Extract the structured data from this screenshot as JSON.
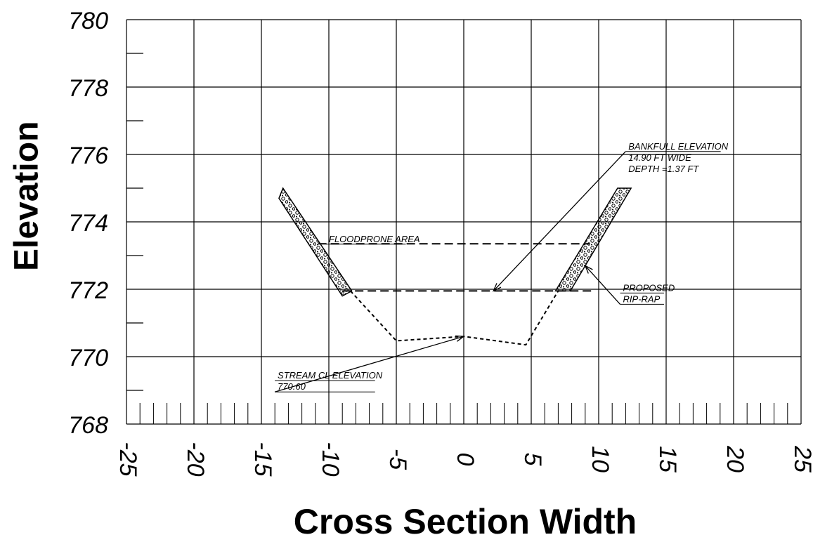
{
  "chart_data": {
    "type": "line",
    "xlabel": "Cross Section Width",
    "ylabel": "Elevation",
    "xlim": [
      -25,
      25
    ],
    "ylim": [
      768,
      780
    ],
    "x_ticks": [
      "-25",
      "-20",
      "-15",
      "-10",
      "-5",
      "0",
      "5",
      "10",
      "15",
      "20",
      "25"
    ],
    "y_ticks": [
      "780",
      "778",
      "776",
      "774",
      "772",
      "770",
      "768"
    ],
    "grid": true,
    "series": [
      {
        "style": "short-dashed",
        "x": [
          -8.4,
          -5.0,
          0.0,
          4.6,
          7.0
        ],
        "y": [
          771.95,
          770.47,
          770.6,
          770.35,
          771.95
        ]
      },
      {
        "style": "long-dashed",
        "x": [
          -9.0,
          9.5
        ],
        "y": [
          771.95,
          771.95
        ]
      },
      {
        "style": "long-dashed",
        "x": [
          -10.8,
          9.3
        ],
        "y": [
          773.35,
          773.35
        ]
      }
    ],
    "riprap": [
      {
        "x": [
          -13.7,
          -13.4,
          -8.3,
          -9.0
        ],
        "y": [
          774.7,
          775.0,
          771.95,
          771.8
        ]
      },
      {
        "x": [
          6.8,
          7.9,
          12.4,
          11.4
        ],
        "y": [
          771.95,
          771.95,
          775.0,
          775.0
        ]
      }
    ],
    "annotations": [
      {
        "lines": [
          "BANKFULL ELEVATION",
          "14.90 FT WIDE",
          "DEPTH =1.37 FT"
        ],
        "x": 12.2,
        "y": 776.15,
        "arrow_to": [
          2.2,
          771.95
        ]
      },
      {
        "lines": [
          "FLOODPRONE AREA"
        ],
        "x": -10.0,
        "y": 773.4
      },
      {
        "lines": [
          "PROPOSED",
          "RIP-RAP"
        ],
        "x": 11.8,
        "y": 771.95,
        "arrow_to": [
          9.0,
          772.7
        ]
      },
      {
        "lines": [
          "STREAM CL ELEVATION",
          "770.60"
        ],
        "x": -13.8,
        "y": 769.35,
        "arrow_to": [
          0.0,
          770.6
        ]
      }
    ]
  }
}
